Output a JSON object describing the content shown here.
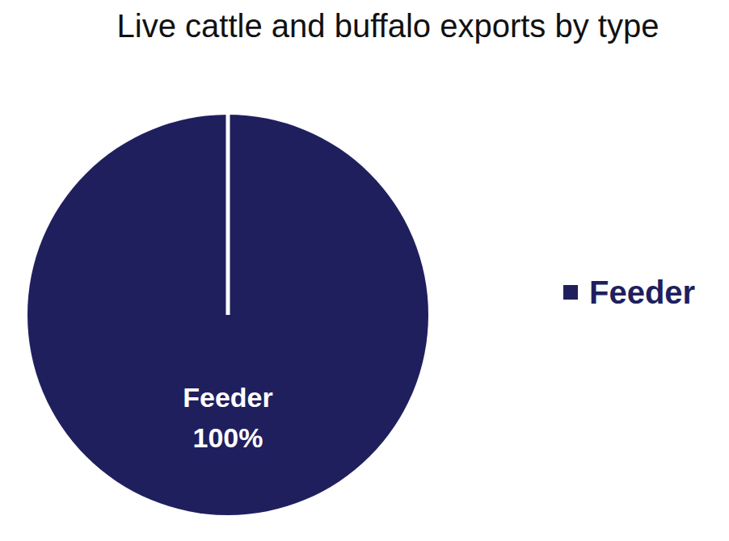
{
  "chart_data": {
    "type": "pie",
    "title": "Live cattle and buffalo exports by type",
    "categories": [
      "Feeder"
    ],
    "values": [
      100
    ],
    "value_labels": [
      "100%"
    ],
    "colors": [
      "#201f5e"
    ],
    "data_labels": true,
    "legend": "right"
  }
}
